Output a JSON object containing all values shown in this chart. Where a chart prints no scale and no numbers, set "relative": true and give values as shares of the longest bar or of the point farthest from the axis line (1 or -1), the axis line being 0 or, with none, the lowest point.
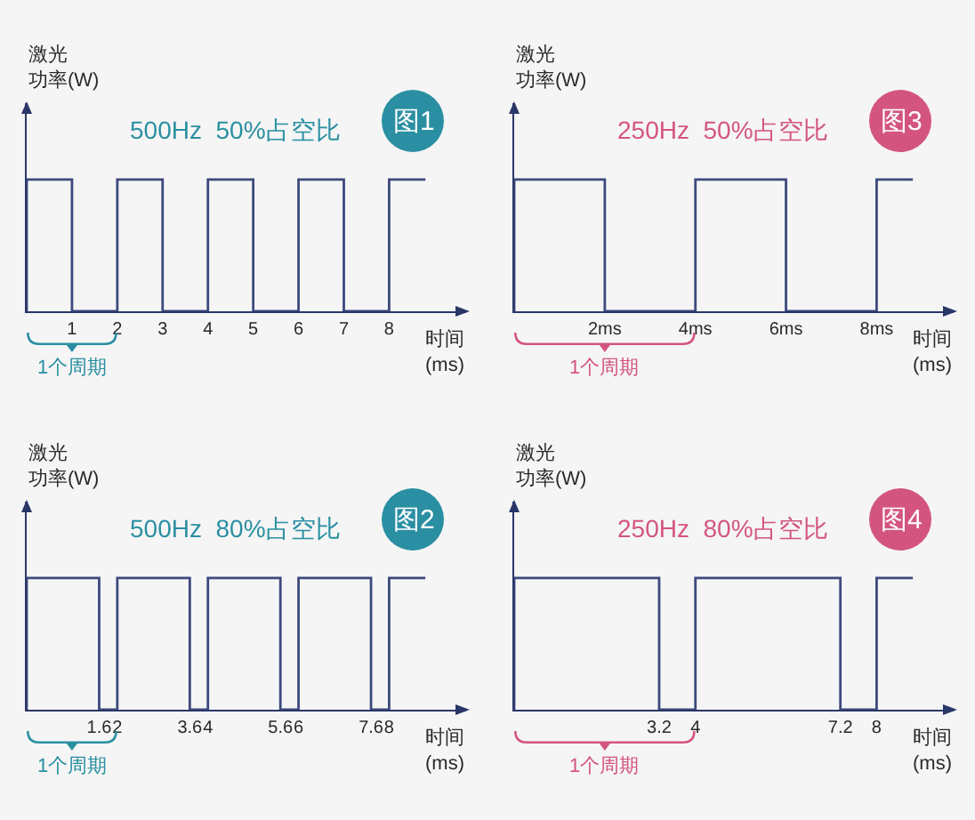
{
  "chart_data": [
    {
      "type": "line",
      "title": "500Hz  50%占空比",
      "xlabel": "时间\n(ms)",
      "ylabel": "激光功率(W)",
      "annotations": [
        "图1",
        "1个周期"
      ],
      "x": [
        0,
        0,
        1,
        1,
        2,
        2,
        3,
        3,
        4,
        4,
        5,
        5,
        6,
        6,
        7,
        7,
        8,
        8,
        8.8
      ],
      "values": [
        0,
        1,
        1,
        0,
        0,
        1,
        1,
        0,
        0,
        1,
        1,
        0,
        0,
        1,
        1,
        0,
        0,
        1,
        1
      ],
      "color": "#3d4a7e",
      "relative": true,
      "xlim": [
        0,
        9.7
      ],
      "xticks": [
        1,
        2,
        3,
        4,
        5,
        6,
        7,
        8
      ]
    },
    {
      "type": "line",
      "title": "250Hz  50%占空比",
      "xlabel": "时间\n(ms)",
      "ylabel": "激光功率(W)",
      "annotations": [
        "图3",
        "1个周期"
      ],
      "x": [
        0,
        0,
        2,
        2,
        4,
        4,
        6,
        6,
        8,
        8,
        8.8
      ],
      "values": [
        0,
        1,
        1,
        0,
        0,
        1,
        1,
        0,
        0,
        1,
        1
      ],
      "color": "#3d4a7e",
      "relative": true,
      "xlim": [
        0,
        9.7
      ],
      "xticks": [
        {
          "value": 2,
          "label": "2ms"
        },
        {
          "value": 4,
          "label": "4ms"
        },
        {
          "value": 6,
          "label": "6ms"
        },
        {
          "value": 8,
          "label": "8ms"
        }
      ]
    },
    {
      "type": "line",
      "title": "500Hz  80%占空比",
      "xlabel": "时间\n(ms)",
      "ylabel": "激光功率(W)",
      "annotations": [
        "图2",
        "1个周期"
      ],
      "x": [
        0,
        0,
        1.6,
        1.6,
        2,
        2,
        3.6,
        3.6,
        4,
        4,
        5.6,
        5.6,
        6,
        6,
        7.6,
        7.6,
        8,
        8,
        8.8
      ],
      "values": [
        0,
        1,
        1,
        0,
        0,
        1,
        1,
        0,
        0,
        1,
        1,
        0,
        0,
        1,
        1,
        0,
        0,
        1,
        1
      ],
      "color": "#3d4a7e",
      "relative": true,
      "xlim": [
        0,
        9.7
      ],
      "xticks": [
        1.6,
        2,
        3.6,
        4,
        5.6,
        6,
        7.6,
        8
      ]
    },
    {
      "type": "line",
      "title": "250Hz  80%占空比",
      "xlabel": "时间\n(ms)",
      "ylabel": "激光功率(W)",
      "annotations": [
        "图4",
        "1个周期"
      ],
      "x": [
        0,
        0,
        3.2,
        3.2,
        4,
        4,
        7.2,
        7.2,
        8,
        8,
        8.8
      ],
      "values": [
        0,
        1,
        1,
        0,
        0,
        1,
        1,
        0,
        0,
        1,
        1
      ],
      "color": "#3d4a7e",
      "relative": true,
      "xlim": [
        0,
        9.7
      ],
      "xticks": [
        3.2,
        4,
        7.2,
        8
      ]
    }
  ]
}
